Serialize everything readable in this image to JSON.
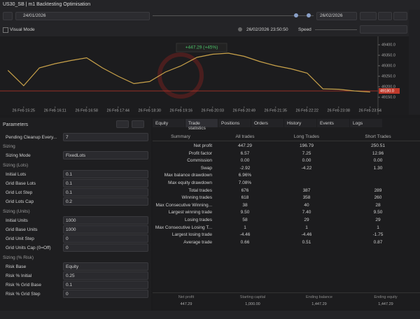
{
  "window": {
    "title": "US30_SB | m1 Backtesting Optimisation"
  },
  "toolbar": {
    "start_date": "24/01/2026",
    "end_date": "26/02/2026",
    "visual_mode": "Visual Mode",
    "current_time": "26/02/2026 23:50:50",
    "speed": "Speed"
  },
  "chart_data": {
    "type": "line",
    "annotation": "+447.29 (+45%)",
    "color": "#c9a24a",
    "categories": [
      null,
      "26 Feb 15:25",
      null,
      "26 Feb 16:11",
      null,
      "26 Feb 16:58",
      null,
      "26 Feb 17:44",
      null,
      "26 Feb 18:30",
      null,
      "26 Feb 19:16",
      null,
      "26 Feb 20:03",
      null,
      "26 Feb 20:49",
      null,
      "26 Feb 21:35",
      null,
      "26 Feb 22:22",
      null,
      "26 Feb 23:08",
      null,
      "26 Feb 23:54"
    ],
    "values": [
      49278,
      49205,
      49290,
      49310,
      49325,
      49338,
      49290,
      49250,
      49215,
      49225,
      49270,
      49300,
      49340,
      49355,
      49360,
      49345,
      49320,
      49300,
      49285,
      49265,
      49190,
      49188,
      49180,
      49175
    ],
    "ylim": [
      49120,
      49420
    ],
    "yticks": [
      {
        "value": 49150,
        "label": "49150.0"
      },
      {
        "value": 49200,
        "label": "49200.0"
      },
      {
        "value": 49250,
        "label": "49250.0"
      },
      {
        "value": 49300,
        "label": "49300.0"
      },
      {
        "value": 49350,
        "label": "49350.0"
      },
      {
        "value": 49400,
        "label": "49400.0"
      }
    ],
    "current_price": {
      "value": 49180,
      "label": "49180.0"
    }
  },
  "parameters": {
    "title": "Parameters",
    "items": [
      {
        "label": "Pending Cleanup Every...",
        "value": "7"
      },
      {
        "section": "Sizing"
      },
      {
        "label": "Sizing Mode",
        "value": "FixedLots"
      },
      {
        "section": "Sizing (Lots)"
      },
      {
        "label": "Initial Lots",
        "value": "0.1"
      },
      {
        "label": "Grid Base Lots",
        "value": "0.1"
      },
      {
        "label": "Grid Lot Step",
        "value": "0.1"
      },
      {
        "label": "Grid Lots Cap",
        "value": "0.2"
      },
      {
        "section": "Sizing (Units)"
      },
      {
        "label": "Initial Units",
        "value": "1000"
      },
      {
        "label": "Grid Base Units",
        "value": "1000"
      },
      {
        "label": "Grid Unit Step",
        "value": "0"
      },
      {
        "label": "Grid Units Cap (0=Off)",
        "value": "0"
      },
      {
        "section": "Sizing (% Risk)"
      },
      {
        "label": "Risk Base",
        "value": "Equity"
      },
      {
        "label": "Risk % Initial",
        "value": "0.25"
      },
      {
        "label": "Risk % Grid Base",
        "value": "0.1"
      },
      {
        "label": "Risk % Grid Step",
        "value": "0"
      }
    ]
  },
  "tabs": [
    "Equity",
    "Trade statistics",
    "Positions",
    "Orders",
    "History",
    "Events",
    "Logs"
  ],
  "table": {
    "header": [
      "Summary",
      "All trades",
      "Long Trades",
      "Short Trades"
    ],
    "rows": [
      [
        "Net profit",
        "447.29",
        "196.79",
        "250.51"
      ],
      [
        "Profit factor",
        "6.57",
        "7.25",
        "12.96"
      ],
      [
        "Commission",
        "0.00",
        "0.00",
        "0.00"
      ],
      [
        "Swap",
        "-2.92",
        "-4.22",
        "1.30"
      ],
      [
        "Max balance drawdown",
        "6.96%",
        "",
        ""
      ],
      [
        "Max equity drawdown",
        "7.08%",
        "",
        ""
      ],
      [
        "Total trades",
        "676",
        "387",
        "289"
      ],
      [
        "Winning trades",
        "618",
        "358",
        "260"
      ],
      [
        "Max Consecutive Winning...",
        "38",
        "40",
        "28"
      ],
      [
        "Largest winning trade",
        "9.50",
        "7.40",
        "9.50"
      ],
      [
        "Losing trades",
        "58",
        "29",
        "29"
      ],
      [
        "Max Consecutive Losing T...",
        "1",
        "1",
        "1"
      ],
      [
        "Largest losing trade",
        "-4.46",
        "-4.46",
        "-1.75"
      ],
      [
        "Average trade",
        "0.66",
        "0.51",
        "0.87"
      ]
    ]
  },
  "summary": [
    {
      "label": "Net profit",
      "value": "447.29"
    },
    {
      "label": "Starting capital",
      "value": "1,000.00"
    },
    {
      "label": "Ending balance",
      "value": "1,447.29"
    },
    {
      "label": "Ending equity",
      "value": "1,447.29"
    }
  ]
}
